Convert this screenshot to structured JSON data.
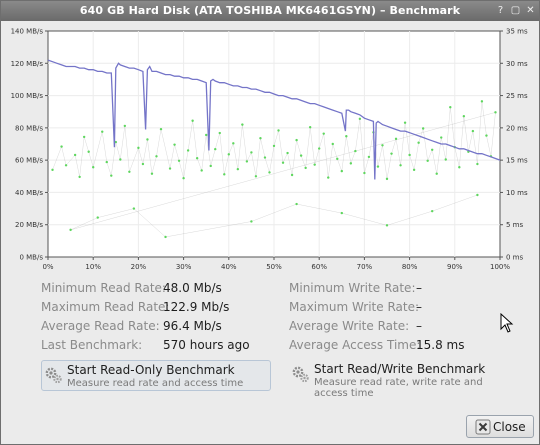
{
  "window": {
    "title": "640 GB Hard Disk (ATA TOSHIBA MK6461GSYN) – Benchmark",
    "help_glyph": "?",
    "restore_glyph": "▢",
    "close_glyph": "✕"
  },
  "chart_data": {
    "type": "line",
    "title": "",
    "xlabel": "",
    "ylabel": "",
    "x_ticks": [
      "0%",
      "10%",
      "20%",
      "30%",
      "40%",
      "50%",
      "60%",
      "70%",
      "80%",
      "90%",
      "100%"
    ],
    "y_left_ticks": [
      "0 MB/s",
      "20 MB/s",
      "40 MB/s",
      "60 MB/s",
      "80 MB/s",
      "100 MB/s",
      "120 MB/s",
      "140 MB/s"
    ],
    "y_right_ticks": [
      "0 ms",
      "5 ms",
      "10 ms",
      "15 ms",
      "20 ms",
      "25 ms",
      "30 ms",
      "35 ms"
    ],
    "xlim": [
      0,
      100
    ],
    "ylim_left": [
      0,
      140
    ],
    "ylim_right": [
      0,
      35
    ],
    "grid": true,
    "colors": {
      "read_rate": "#7474c8",
      "access_time": "#5ed65e",
      "seek_lines": "#9a9a9a"
    },
    "read_rate": {
      "x": [
        0,
        1,
        2,
        3,
        4,
        5,
        6,
        7,
        8,
        9,
        10,
        11,
        12,
        13,
        14,
        14.7,
        15,
        15.6,
        16,
        17,
        18,
        19,
        20,
        21,
        21.6,
        22,
        22.5,
        23,
        24,
        25,
        26,
        27,
        28,
        29,
        30,
        31,
        32,
        33,
        34,
        35,
        35.6,
        36,
        36.5,
        37,
        38,
        39,
        40,
        41,
        42,
        43,
        44,
        45,
        46,
        47,
        48,
        49,
        50,
        51,
        52,
        53,
        54,
        55,
        56,
        57,
        58,
        59,
        60,
        61,
        62,
        63,
        64,
        65,
        65.8,
        66,
        66.5,
        67,
        68,
        69,
        70,
        71,
        72,
        72.3,
        72.6,
        73,
        74,
        75,
        76,
        77,
        78,
        79,
        80,
        81,
        82,
        83,
        84,
        85,
        86,
        87,
        88,
        89,
        90,
        91,
        92,
        93,
        94,
        95,
        96,
        97,
        98,
        99,
        100
      ],
      "y": [
        122,
        121,
        120,
        119,
        118,
        118,
        118,
        117,
        117,
        116,
        116,
        115,
        115,
        114,
        114,
        68,
        117,
        120,
        119,
        118,
        117,
        117,
        116,
        115,
        79,
        116,
        118,
        115,
        115,
        114,
        113,
        113,
        112,
        112,
        111,
        111,
        110,
        110,
        109,
        108,
        66,
        109,
        110,
        109,
        108,
        108,
        107,
        106,
        106,
        105,
        105,
        104,
        104,
        103,
        102,
        102,
        101,
        100,
        100,
        99,
        98,
        98,
        97,
        96,
        95,
        95,
        94,
        93,
        92,
        91,
        90,
        89,
        78,
        91,
        91,
        90,
        89,
        88,
        86,
        85,
        84,
        48,
        83,
        84,
        82,
        81,
        80,
        79,
        78,
        78,
        77,
        76,
        75,
        74,
        73,
        72,
        71,
        70,
        70,
        69,
        68,
        67,
        67,
        66,
        65,
        64,
        64,
        63,
        62,
        61,
        60
      ]
    },
    "access_time": {
      "x": [
        1,
        3,
        4,
        6,
        7,
        8,
        9,
        10,
        12,
        13,
        14,
        15,
        16,
        17,
        18,
        20,
        21,
        22,
        23,
        24,
        25,
        27,
        28,
        29,
        30,
        31,
        32,
        33,
        34,
        35,
        36,
        37,
        38,
        39,
        40,
        41,
        42,
        43,
        44,
        45,
        46,
        47,
        48,
        49,
        50,
        51,
        52,
        53,
        54,
        55,
        56,
        57,
        58,
        59,
        60,
        61,
        62,
        63,
        64,
        65,
        66,
        67,
        68,
        69,
        70,
        71,
        72,
        73,
        74,
        75,
        76,
        77,
        78,
        79,
        80,
        81,
        82,
        83,
        84,
        85,
        86,
        87,
        88,
        89,
        90,
        91,
        92,
        93,
        94,
        95,
        96,
        97,
        98,
        99,
        5,
        11,
        19,
        26,
        45,
        55,
        65,
        75,
        85,
        95
      ],
      "y": [
        13.5,
        17.1,
        14.2,
        15.8,
        12.4,
        18.6,
        16.3,
        13.9,
        19.4,
        14.7,
        12.6,
        17.8,
        15.1,
        20.3,
        13.2,
        16.9,
        14.4,
        18.2,
        12.9,
        15.6,
        19.8,
        13.7,
        17.4,
        14.9,
        12.2,
        16.5,
        21.1,
        15.3,
        13.4,
        18.9,
        14.1,
        16.7,
        19.2,
        12.8,
        15.9,
        17.6,
        13.6,
        20.5,
        14.8,
        16.2,
        12.5,
        18.4,
        15.4,
        13.1,
        17.2,
        19.6,
        14.6,
        16.1,
        12.7,
        18.1,
        15.7,
        13.8,
        20.1,
        14.3,
        16.8,
        19.1,
        12.3,
        17.5,
        15.2,
        13.3,
        18.7,
        14.5,
        16.4,
        21.4,
        13,
        15.5,
        19.3,
        14,
        17.3,
        12.1,
        16,
        18.3,
        14.2,
        20.8,
        15.8,
        13.5,
        17.7,
        19.9,
        14.9,
        16.6,
        12.9,
        18.5,
        15.1,
        23.2,
        17,
        13.9,
        21.8,
        16.3,
        19.5,
        14.4,
        24.1,
        18.8,
        15.6,
        22.4,
        4.2,
        6.1,
        7.5,
        3.1,
        5.5,
        8.2,
        6.8,
        4.9,
        7.1,
        9.6
      ]
    }
  },
  "stats": {
    "read": [
      {
        "label": "Minimum Read Rate:",
        "value": "48.0 Mb/s"
      },
      {
        "label": "Maximum Read Rate:",
        "value": "122.9 Mb/s"
      },
      {
        "label": "Average Read Rate:",
        "value": "96.4 Mb/s"
      },
      {
        "label": "Last Benchmark:",
        "value": "570 hours ago"
      }
    ],
    "write": [
      {
        "label": "Minimum Write Rate:",
        "value": "–"
      },
      {
        "label": "Maximum Write Rate:",
        "value": "–"
      },
      {
        "label": "Average Write Rate:",
        "value": "–"
      },
      {
        "label": "Average Access Time:",
        "value": "15.8 ms"
      }
    ]
  },
  "actions": {
    "read_only": {
      "title": "Start Read-Only Benchmark",
      "subtitle": "Measure read rate and access time"
    },
    "read_write": {
      "title": "Start Read/Write Benchmark",
      "subtitle": "Measure read rate, write rate and access time"
    }
  },
  "close_label": "Close"
}
